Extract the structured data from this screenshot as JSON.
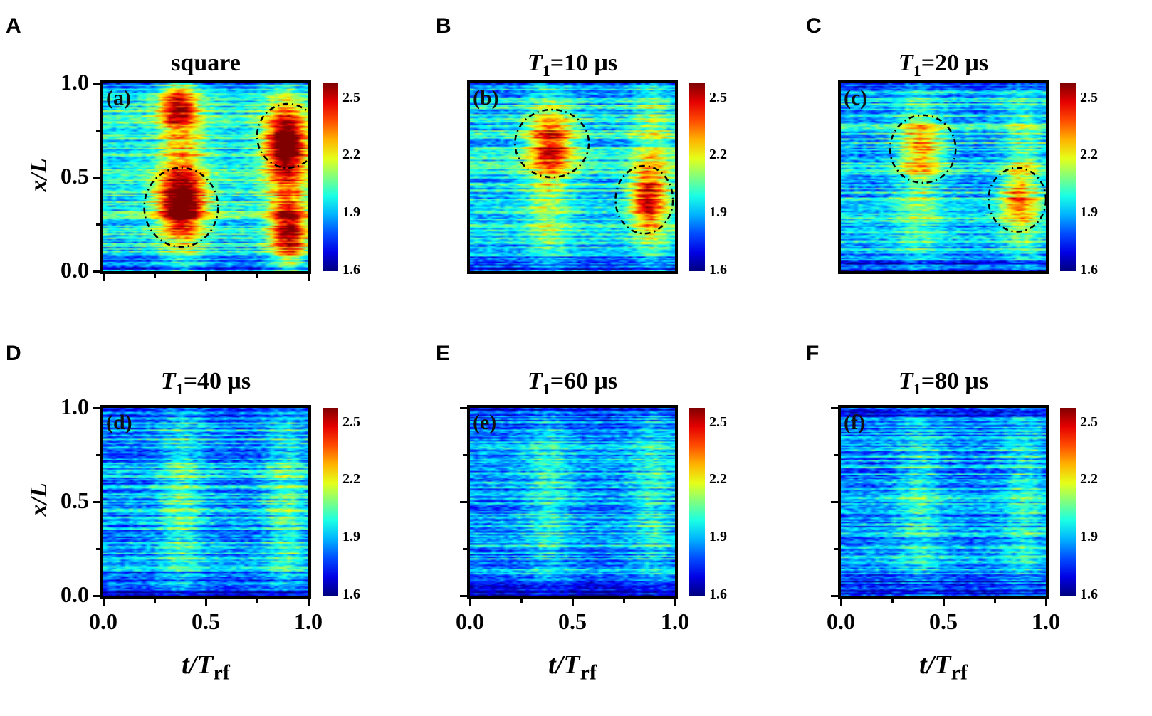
{
  "chart_data": {
    "type": "heatmap",
    "xlabel_main": "t/T",
    "xlabel_sub": "rf",
    "ylabel": "x/L",
    "xlim": [
      0,
      1
    ],
    "ylim": [
      0,
      1
    ],
    "x_ticks": [
      "0.0",
      "0.5",
      "1.0"
    ],
    "y_ticks": [
      "0.0",
      "0.5",
      "1.0"
    ],
    "colorbar": {
      "min": 1.6,
      "max": 2.58,
      "ticks": [
        "2.5",
        "2.2",
        "1.9",
        "1.6"
      ],
      "tick_values": [
        2.5,
        2.2,
        1.9,
        1.6
      ],
      "colormap": "jet"
    },
    "panels": [
      {
        "letter": "A",
        "label": "(a)",
        "title_plain": "square",
        "title_var": "",
        "title_sub": "",
        "title_val": "",
        "band_amp": 0.32,
        "base": 1.98,
        "hotspots": [
          {
            "t": 0.38,
            "x": 0.36,
            "st": 0.08,
            "sx": 0.1,
            "amp": 0.55
          },
          {
            "t": 0.9,
            "x": 0.68,
            "st": 0.07,
            "sx": 0.1,
            "amp": 0.55
          },
          {
            "t": 0.36,
            "x": 0.88,
            "st": 0.06,
            "sx": 0.08,
            "amp": 0.4
          },
          {
            "t": 0.92,
            "x": 0.2,
            "st": 0.06,
            "sx": 0.12,
            "amp": 0.4
          }
        ],
        "ellipses": [
          {
            "t": 0.38,
            "x": 0.34,
            "rt": 0.18,
            "rx": 0.21
          },
          {
            "t": 0.9,
            "x": 0.72,
            "rt": 0.15,
            "rx": 0.17
          }
        ]
      },
      {
        "letter": "B",
        "label": "(b)",
        "title_plain": "",
        "title_var": "T",
        "title_sub": "1",
        "title_val": "=10 μs",
        "band_amp": 0.22,
        "base": 1.95,
        "hotspots": [
          {
            "t": 0.4,
            "x": 0.68,
            "st": 0.08,
            "sx": 0.1,
            "amp": 0.35
          },
          {
            "t": 0.87,
            "x": 0.38,
            "st": 0.06,
            "sx": 0.1,
            "amp": 0.4
          }
        ],
        "ellipses": [
          {
            "t": 0.4,
            "x": 0.68,
            "rt": 0.18,
            "rx": 0.18
          },
          {
            "t": 0.85,
            "x": 0.38,
            "rt": 0.14,
            "rx": 0.18
          }
        ]
      },
      {
        "letter": "C",
        "label": "(c)",
        "title_plain": "",
        "title_var": "T",
        "title_sub": "1",
        "title_val": "=20 μs",
        "band_amp": 0.18,
        "base": 1.93,
        "hotspots": [
          {
            "t": 0.4,
            "x": 0.66,
            "st": 0.08,
            "sx": 0.1,
            "amp": 0.25
          },
          {
            "t": 0.87,
            "x": 0.38,
            "st": 0.06,
            "sx": 0.1,
            "amp": 0.28
          }
        ],
        "ellipses": [
          {
            "t": 0.4,
            "x": 0.65,
            "rt": 0.16,
            "rx": 0.18
          },
          {
            "t": 0.86,
            "x": 0.38,
            "rt": 0.14,
            "rx": 0.17
          }
        ]
      },
      {
        "letter": "D",
        "label": "(d)",
        "title_plain": "",
        "title_var": "T",
        "title_sub": "1",
        "title_val": "=40 μs",
        "band_amp": 0.18,
        "base": 1.88,
        "hotspots": [],
        "ellipses": []
      },
      {
        "letter": "E",
        "label": "(e)",
        "title_plain": "",
        "title_var": "T",
        "title_sub": "1",
        "title_val": "=60 μs",
        "band_amp": 0.14,
        "base": 1.87,
        "hotspots": [],
        "ellipses": []
      },
      {
        "letter": "F",
        "label": "(f)",
        "title_plain": "",
        "title_var": "T",
        "title_sub": "1",
        "title_val": "=80 μs",
        "band_amp": 0.14,
        "base": 1.87,
        "hotspots": [],
        "ellipses": []
      }
    ]
  }
}
